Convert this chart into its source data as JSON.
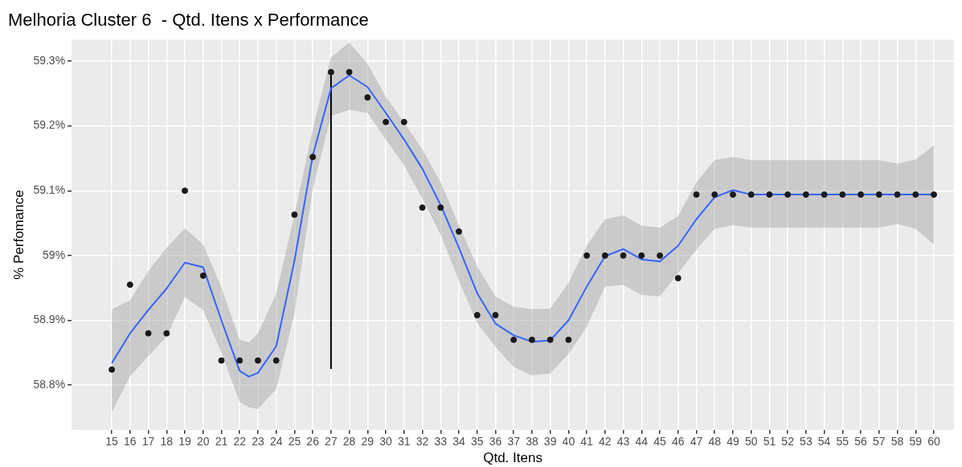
{
  "chart_data": {
    "type": "scatter",
    "title": "Melhoria Cluster 6  - Qtd. Itens x Performance",
    "xlabel": "Qtd. Itens",
    "ylabel": "% Perfomance",
    "xlim": [
      12.8,
      61.1
    ],
    "xticks": [
      15,
      16,
      17,
      18,
      19,
      20,
      21,
      22,
      23,
      24,
      25,
      26,
      27,
      28,
      29,
      30,
      31,
      32,
      33,
      34,
      35,
      36,
      37,
      38,
      39,
      40,
      41,
      42,
      43,
      44,
      45,
      46,
      47,
      48,
      49,
      50,
      51,
      52,
      53,
      54,
      55,
      56,
      57,
      58,
      59,
      60
    ],
    "ylim": [
      58.731,
      59.333
    ],
    "yticks": [
      {
        "value": 58.8,
        "label": "58.8%"
      },
      {
        "value": 58.9,
        "label": "58.9%"
      },
      {
        "value": 59,
        "label": "59%"
      },
      {
        "value": 59.1,
        "label": "59.1%"
      },
      {
        "value": 59.2,
        "label": "59.2%"
      },
      {
        "value": 59.3,
        "label": "59.3%"
      }
    ],
    "grid": true,
    "legend": false,
    "marker": "circle",
    "series": [
      {
        "type": "line",
        "color": "#3366ff",
        "marker": "none",
        "x": [
          15,
          16,
          17,
          18,
          19,
          20,
          21,
          22,
          22.5,
          23,
          24,
          25,
          26,
          27,
          28,
          29,
          30,
          31,
          32,
          33,
          34,
          35,
          36,
          37,
          38,
          39,
          40,
          41,
          42,
          43,
          44,
          45,
          46,
          47,
          48,
          49,
          50,
          51,
          52,
          53,
          54,
          55,
          56,
          57,
          58,
          59,
          60
        ],
        "values": [
          58.834,
          58.88,
          58.916,
          58.949,
          58.989,
          58.982,
          58.9,
          58.822,
          58.813,
          58.819,
          58.86,
          58.992,
          59.154,
          59.258,
          59.278,
          59.26,
          59.22,
          59.179,
          59.134,
          59.078,
          59.012,
          58.942,
          58.895,
          58.877,
          58.867,
          58.869,
          58.9,
          58.952,
          58.999,
          59.01,
          58.994,
          58.991,
          59.015,
          59.056,
          59.09,
          59.101,
          59.094,
          59.094,
          59.094,
          59.094,
          59.094,
          59.094,
          59.094,
          59.094,
          59.094,
          59.094,
          59.094
        ],
        "lower": [
          58.758,
          58.814,
          58.845,
          58.875,
          58.936,
          58.916,
          58.85,
          58.774,
          58.766,
          58.763,
          58.794,
          58.911,
          59.103,
          59.215,
          59.225,
          59.22,
          59.179,
          59.139,
          59.088,
          59.032,
          58.961,
          58.896,
          58.859,
          58.828,
          58.815,
          58.818,
          58.848,
          58.89,
          58.952,
          58.955,
          58.939,
          58.937,
          58.973,
          59.009,
          59.041,
          59.047,
          59.043,
          59.043,
          59.043,
          59.043,
          59.043,
          59.043,
          59.043,
          59.043,
          59.049,
          59.041,
          59.017
        ],
        "upper": [
          58.917,
          58.931,
          58.976,
          59.012,
          59.042,
          59.017,
          58.951,
          58.87,
          58.866,
          58.88,
          58.941,
          59.063,
          59.195,
          59.306,
          59.329,
          59.296,
          59.245,
          59.205,
          59.164,
          59.113,
          59.047,
          58.983,
          58.937,
          58.921,
          58.917,
          58.918,
          58.958,
          59.015,
          59.056,
          59.062,
          59.046,
          59.043,
          59.061,
          59.113,
          59.147,
          59.152,
          59.147,
          59.147,
          59.147,
          59.147,
          59.147,
          59.147,
          59.147,
          59.147,
          59.142,
          59.148,
          59.17
        ]
      },
      {
        "type": "scatter",
        "color": "#1a1a1a",
        "x": [
          15,
          16,
          17,
          18,
          19,
          20,
          21,
          22,
          23,
          24,
          25,
          26,
          27,
          28,
          29,
          30,
          31,
          32,
          33,
          34,
          35,
          36,
          37,
          38,
          39,
          40,
          41,
          42,
          43,
          44,
          45,
          46,
          47,
          48,
          49,
          50,
          51,
          52,
          53,
          54,
          55,
          56,
          57,
          58,
          59,
          60
        ],
        "values": [
          58.824,
          58.955,
          58.88,
          58.88,
          59.1,
          58.969,
          58.838,
          58.838,
          58.838,
          58.838,
          59.063,
          59.152,
          59.283,
          59.283,
          59.244,
          59.206,
          59.206,
          59.074,
          59.074,
          59.037,
          58.908,
          58.908,
          58.87,
          58.87,
          58.87,
          58.87,
          59.0,
          59.0,
          59.0,
          59.0,
          59.0,
          58.965,
          59.094,
          59.094,
          59.094,
          59.094,
          59.094,
          59.094,
          59.094,
          59.094,
          59.094,
          59.094,
          59.094,
          59.094,
          59.094,
          59.094
        ]
      },
      {
        "type": "line",
        "color": "#000000",
        "marker": "none",
        "x": [
          27,
          27
        ],
        "values": [
          58.825,
          59.283
        ]
      }
    ]
  }
}
